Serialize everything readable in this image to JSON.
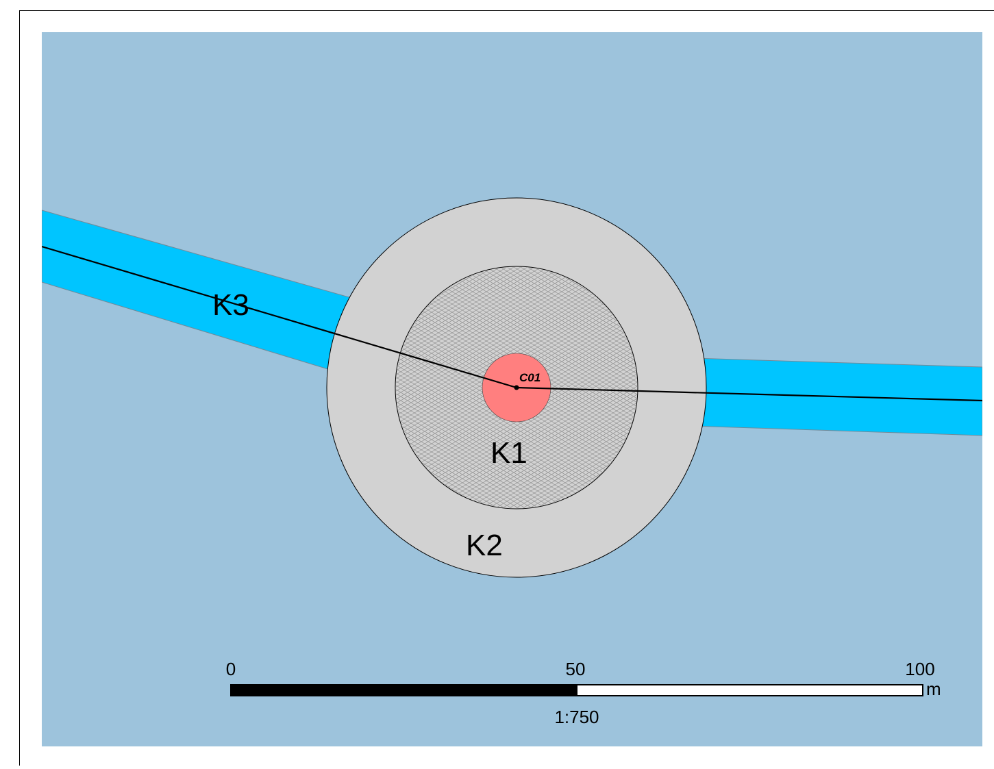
{
  "map": {
    "colors": {
      "background": "#9dc3dc",
      "corridor": "#00c5ff",
      "zone_k2": "#d2d2d2",
      "zone_k1": "#d2d2d2",
      "zone_k1_hatch": "#8c8c8c",
      "center_point": "#ff7f7f",
      "outline": "#000000"
    },
    "labels": {
      "k1": "K1",
      "k2": "K2",
      "k3": "K3",
      "center": "C01"
    },
    "scale_bar": {
      "tick_0": "0",
      "tick_mid": "50",
      "tick_end": "100",
      "unit": "m",
      "ratio": "1:750"
    }
  }
}
